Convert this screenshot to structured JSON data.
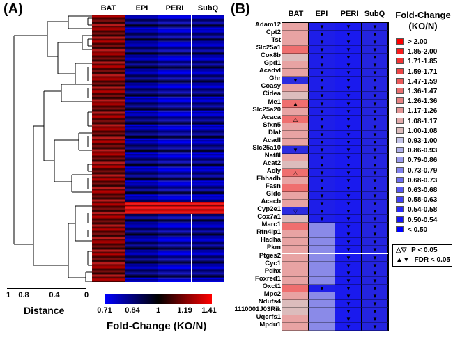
{
  "panel_a": {
    "label": "(A)",
    "columns": [
      "BAT",
      "EPI",
      "PERI",
      "SubQ"
    ],
    "distance_ticks": [
      "1",
      "0.8",
      "0.4",
      "0"
    ],
    "distance_title": "Distance",
    "colorbar_ticks": [
      "0.71",
      "0.84",
      "1",
      "1.19",
      "1.41"
    ],
    "colorbar_title": "Fold-Change (KO/N)",
    "colorbar_colors": [
      "#0000ff",
      "#000000",
      "#ff0000"
    ]
  },
  "panel_b": {
    "label": "(B)",
    "columns": [
      "BAT",
      "EPI",
      "PERI",
      "SubQ"
    ],
    "genes": [
      {
        "name": "Adam12",
        "bat": "#e8a3a3",
        "m": [
          "",
          "▼",
          "▼",
          "▼"
        ]
      },
      {
        "name": "Cpt2",
        "bat": "#e8a3a3",
        "m": [
          "",
          "▼",
          "▼",
          "▼"
        ]
      },
      {
        "name": "Tst",
        "bat": "#e8a3a3",
        "m": [
          "",
          "▼",
          "▼",
          "▼"
        ]
      },
      {
        "name": "Slc25a1",
        "bat": "#ef6f6f",
        "m": [
          "",
          "▼",
          "▼",
          "▼"
        ]
      },
      {
        "name": "Cox8b",
        "bat": "#dcbcbc",
        "m": [
          "",
          "▼",
          "▼",
          "▼"
        ]
      },
      {
        "name": "Gpd1",
        "bat": "#e8a3a3",
        "m": [
          "",
          "▼",
          "▼",
          "▼"
        ]
      },
      {
        "name": "Acadvl",
        "bat": "#e8a3a3",
        "m": [
          "",
          "▼",
          "▼",
          "▼"
        ]
      },
      {
        "name": "Ghr",
        "bat": "#2b2be0",
        "m": [
          "▼",
          "▼",
          "▼",
          "▼"
        ]
      },
      {
        "name": "Coasy",
        "bat": "#e8a3a3",
        "m": [
          "",
          "▼",
          "▼",
          "▼"
        ]
      },
      {
        "name": "Cidea",
        "bat": "#dcbcbc",
        "m": [
          "",
          "▼",
          "▼",
          "▼"
        ]
      },
      {
        "name": "Me1",
        "bat": "#ef6f6f",
        "m": [
          "▲",
          "▼",
          "▼",
          "▼"
        ]
      },
      {
        "name": "Slc25a20",
        "bat": "#e8a3a3",
        "m": [
          "",
          "▼",
          "▼",
          "▼"
        ]
      },
      {
        "name": "Acaca",
        "bat": "#ef6f6f",
        "m": [
          "△",
          "▼",
          "▼",
          "▼"
        ]
      },
      {
        "name": "Sfxn5",
        "bat": "#e8a3a3",
        "m": [
          "",
          "▼",
          "▼",
          "▼"
        ]
      },
      {
        "name": "Dlat",
        "bat": "#e8a3a3",
        "m": [
          "",
          "▼",
          "▼",
          "▼"
        ]
      },
      {
        "name": "Acadl",
        "bat": "#e8a3a3",
        "m": [
          "",
          "▼",
          "▼",
          "▼"
        ]
      },
      {
        "name": "Slc25a10",
        "bat": "#2b2be0",
        "m": [
          "▼",
          "▼",
          "▼",
          "▼"
        ]
      },
      {
        "name": "Nat8l",
        "bat": "#e8a3a3",
        "m": [
          "",
          "▼",
          "▼",
          "▼"
        ]
      },
      {
        "name": "Acat2",
        "bat": "#dcbcbc",
        "m": [
          "",
          "▼",
          "▼",
          "▼"
        ]
      },
      {
        "name": "Acly",
        "bat": "#ef6f6f",
        "m": [
          "△",
          "▼",
          "▼",
          "▼"
        ]
      },
      {
        "name": "Ehhadh",
        "bat": "#e8a3a3",
        "m": [
          "",
          "▼",
          "▼",
          "▼"
        ]
      },
      {
        "name": "Fasn",
        "bat": "#ef6f6f",
        "m": [
          "",
          "▼",
          "▼",
          "▼"
        ]
      },
      {
        "name": "Gldc",
        "bat": "#e8a3a3",
        "m": [
          "",
          "▼",
          "▼",
          "▼"
        ]
      },
      {
        "name": "Acacb",
        "bat": "#e8a3a3",
        "m": [
          "",
          "▼",
          "▼",
          "▼"
        ]
      },
      {
        "name": "Cyp2e1",
        "bat": "#2b2be0",
        "m": [
          "▽",
          "▼",
          "▼",
          "▼"
        ]
      },
      {
        "name": "Cox7a1",
        "bat": "#dcbcbc",
        "m": [
          "",
          "▼",
          "▼",
          "▼"
        ]
      },
      {
        "name": "Marc1",
        "bat": "#ef6f6f",
        "m": [
          "",
          "",
          "▼",
          "▼"
        ]
      },
      {
        "name": "Rtn4ip1",
        "bat": "#e8a3a3",
        "m": [
          "",
          "",
          "▼",
          "▼"
        ]
      },
      {
        "name": "Hadha",
        "bat": "#e8a3a3",
        "m": [
          "",
          "",
          "▼",
          "▼"
        ]
      },
      {
        "name": "Pkm",
        "bat": "#e8a3a3",
        "m": [
          "",
          "",
          "▼",
          "▼"
        ]
      },
      {
        "name": "Ptges2",
        "bat": "#e8a3a3",
        "m": [
          "",
          "",
          "▼",
          "▼"
        ]
      },
      {
        "name": "Cyc1",
        "bat": "#e8a3a3",
        "m": [
          "",
          "",
          "▼",
          "▼"
        ]
      },
      {
        "name": "Pdhx",
        "bat": "#e8a3a3",
        "m": [
          "",
          "",
          "▼",
          "▼"
        ]
      },
      {
        "name": "Foxred1",
        "bat": "#e8a3a3",
        "m": [
          "",
          "",
          "▼",
          "▼"
        ]
      },
      {
        "name": "Oxct1",
        "bat": "#ef6f6f",
        "m": [
          "",
          "▼",
          "▼",
          "▼"
        ]
      },
      {
        "name": "Mpc2",
        "bat": "#e8a3a3",
        "m": [
          "",
          "",
          "▼",
          "▼"
        ]
      },
      {
        "name": "Ndufs4",
        "bat": "#dcbcbc",
        "m": [
          "",
          "",
          "▼",
          "▼"
        ]
      },
      {
        "name": "1110001J03Rik",
        "bat": "#dcbcbc",
        "m": [
          "",
          "",
          "▼",
          "▼"
        ]
      },
      {
        "name": "Uqcrfs1",
        "bat": "#e8a3a3",
        "m": [
          "",
          "",
          "▼",
          "▼"
        ]
      },
      {
        "name": "Mpdu1",
        "bat": "#e8a3a3",
        "m": [
          "",
          "",
          "▼",
          "▼"
        ]
      }
    ],
    "legend_title_1": "Fold-Change",
    "legend_title_2": "(KO/N)",
    "legend": [
      {
        "label": "> 2.00",
        "color": "#ff0000"
      },
      {
        "label": "1.85-2.00",
        "color": "#f81c1c"
      },
      {
        "label": "1.71-1.85",
        "color": "#f23232"
      },
      {
        "label": "1.59-1.71",
        "color": "#ec4646"
      },
      {
        "label": "1.47-1.59",
        "color": "#ea5a5a"
      },
      {
        "label": "1.36-1.47",
        "color": "#e86e6e"
      },
      {
        "label": "1.26-1.36",
        "color": "#e68282"
      },
      {
        "label": "1.17-1.26",
        "color": "#e49696"
      },
      {
        "label": "1.08-1.17",
        "color": "#e2aaaa"
      },
      {
        "label": "1.00-1.08",
        "color": "#dcbcbc"
      },
      {
        "label": "0.93-1.00",
        "color": "#c4c4e8"
      },
      {
        "label": "0.86-0.93",
        "color": "#aeaeea"
      },
      {
        "label": "0.79-0.86",
        "color": "#9898ec"
      },
      {
        "label": "0.73-0.79",
        "color": "#8282ee"
      },
      {
        "label": "0.68-0.73",
        "color": "#6c6cf0"
      },
      {
        "label": "0.63-0.68",
        "color": "#5656f2"
      },
      {
        "label": "0.58-0.63",
        "color": "#4040f4"
      },
      {
        "label": "0.54-0.58",
        "color": "#2a2af6"
      },
      {
        "label": "0.50-0.54",
        "color": "#1414f8"
      },
      {
        "label": "< 0.50",
        "color": "#0000ff"
      }
    ],
    "sig_legend": [
      {
        "symbol": "△▽",
        "label": "P < 0.05"
      },
      {
        "symbol": "▲▼",
        "label": "FDR < 0.05"
      }
    ]
  }
}
